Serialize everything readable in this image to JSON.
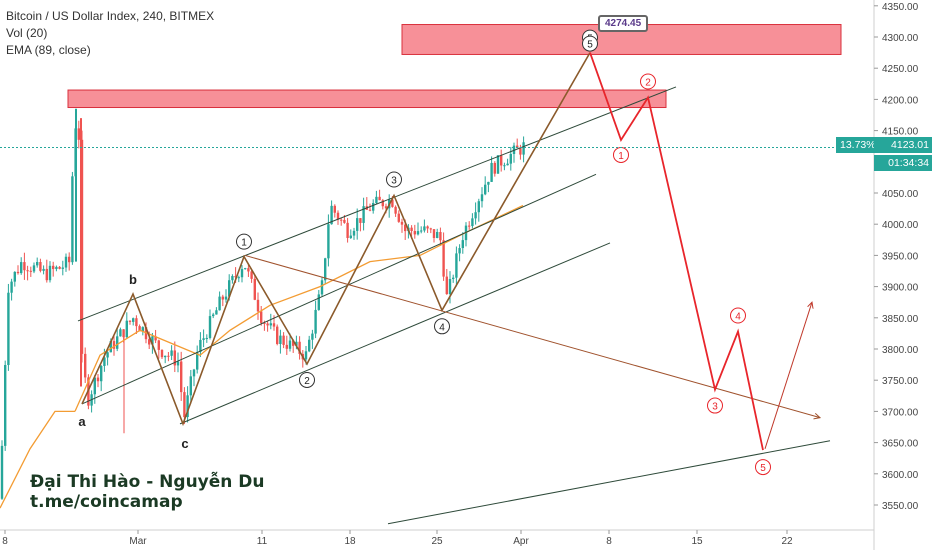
{
  "legend": {
    "title": "Bitcoin / US Dollar Index, 240, BITMEX",
    "vol": "Vol (20)",
    "ema": "EMA (89, close)"
  },
  "watermark": {
    "line1": "Đại Thi Hào - Nguyễn Du",
    "line2": "t.me/coincamap"
  },
  "price_axis": {
    "ticks": [
      "3550.00",
      "3600.00",
      "3650.00",
      "3700.00",
      "3750.00",
      "3800.00",
      "3850.00",
      "3900.00",
      "3950.00",
      "4000.00",
      "4050.00",
      "4100.00",
      "4150.00",
      "4200.00",
      "4250.00",
      "4300.00",
      "4350.00"
    ]
  },
  "current": {
    "price": "4123.01",
    "change": "13.73%",
    "countdown": "01:34:34"
  },
  "callout_price": "4274.45",
  "time_axis": {
    "ticks": [
      "8",
      "Mar",
      "11",
      "18",
      "25",
      "Apr",
      "8",
      "15",
      "22"
    ]
  },
  "colors": {
    "up": "#26a69a",
    "down": "#ef5350",
    "ema": "#f39c33",
    "wave_brown": "#8b5a2b",
    "projection": "#e8252b",
    "channel": "#2e4a3a",
    "zone": "#f46b75"
  },
  "chart_data": {
    "type": "line",
    "symbol": "Bitcoin / US Dollar Index",
    "interval": "240",
    "exchange": "BITMEX",
    "y_range": [
      3520,
      4350
    ],
    "x_ticks": [
      "8",
      "Mar",
      "11",
      "18",
      "25",
      "Apr",
      "8",
      "15",
      "22"
    ],
    "current_price": 4123.01,
    "current_change_pct": "13.73%",
    "historical_wave": {
      "labels": [
        "a",
        "b",
        "c",
        "1",
        "2",
        "3",
        "4",
        "5"
      ],
      "values": [
        3712,
        3888,
        3680,
        3948,
        3776,
        4046,
        3862,
        4275
      ]
    },
    "projected_wave": {
      "labels": [
        "1",
        "2",
        "3",
        "4",
        "5"
      ],
      "values": [
        4135,
        4203,
        3735,
        3828,
        3638
      ]
    },
    "resistance_zones": [
      [
        4187,
        4215
      ],
      [
        4272,
        4320
      ]
    ],
    "annotation_price": 4274.45,
    "series": [
      {
        "name": "EMA (89, close)",
        "values": [
          3700,
          3790,
          3830,
          3810,
          3790,
          3830,
          3870,
          3900,
          3940,
          3950,
          3990,
          4030
        ]
      }
    ]
  }
}
